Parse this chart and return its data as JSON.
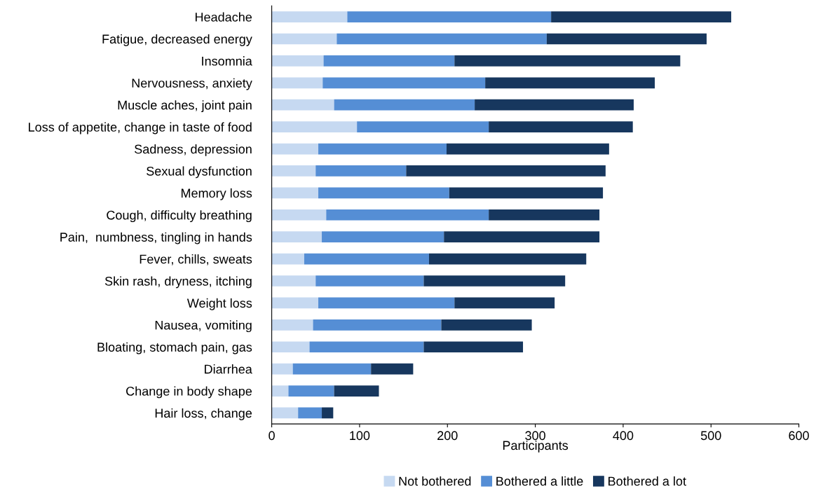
{
  "chart_data": {
    "type": "bar",
    "orientation": "horizontal",
    "stacked": true,
    "xlabel": "Participants",
    "categories": [
      "Headache",
      "Fatigue, decreased energy",
      "Insomnia",
      "Nervousness, anxiety",
      "Muscle aches, joint pain",
      "Loss of appetite, change in taste of food",
      "Sadness, depression",
      "Sexual dysfunction",
      "Memory loss",
      "Cough, difficulty breathing",
      "Pain,  numbness, tingling in hands",
      "Fever, chills, sweats",
      "Skin rash, dryness, itching",
      "Weight loss",
      "Nausea, vomiting",
      "Bloating, stomach pain, gas",
      "Diarrhea",
      "Change in body shape",
      "Hair loss, change"
    ],
    "series": [
      {
        "name": "Not bothered",
        "color": "#c6d9f1",
        "values": [
          86,
          74,
          59,
          58,
          71,
          97,
          53,
          50,
          53,
          62,
          57,
          37,
          50,
          53,
          47,
          43,
          24,
          19,
          30
        ]
      },
      {
        "name": "Bothered a little",
        "color": "#558ed5",
        "values": [
          232,
          239,
          149,
          185,
          160,
          150,
          146,
          103,
          149,
          185,
          139,
          142,
          123,
          155,
          146,
          130,
          89,
          52,
          27
        ]
      },
      {
        "name": "Bothered a lot",
        "color": "#17375e",
        "values": [
          205,
          182,
          257,
          193,
          181,
          164,
          185,
          227,
          175,
          126,
          177,
          179,
          161,
          114,
          103,
          113,
          48,
          51,
          13
        ]
      }
    ],
    "xlim": [
      0,
      600
    ],
    "xticks": [
      0,
      100,
      200,
      300,
      400,
      500,
      600
    ],
    "grid": false,
    "legend": "bottom"
  }
}
